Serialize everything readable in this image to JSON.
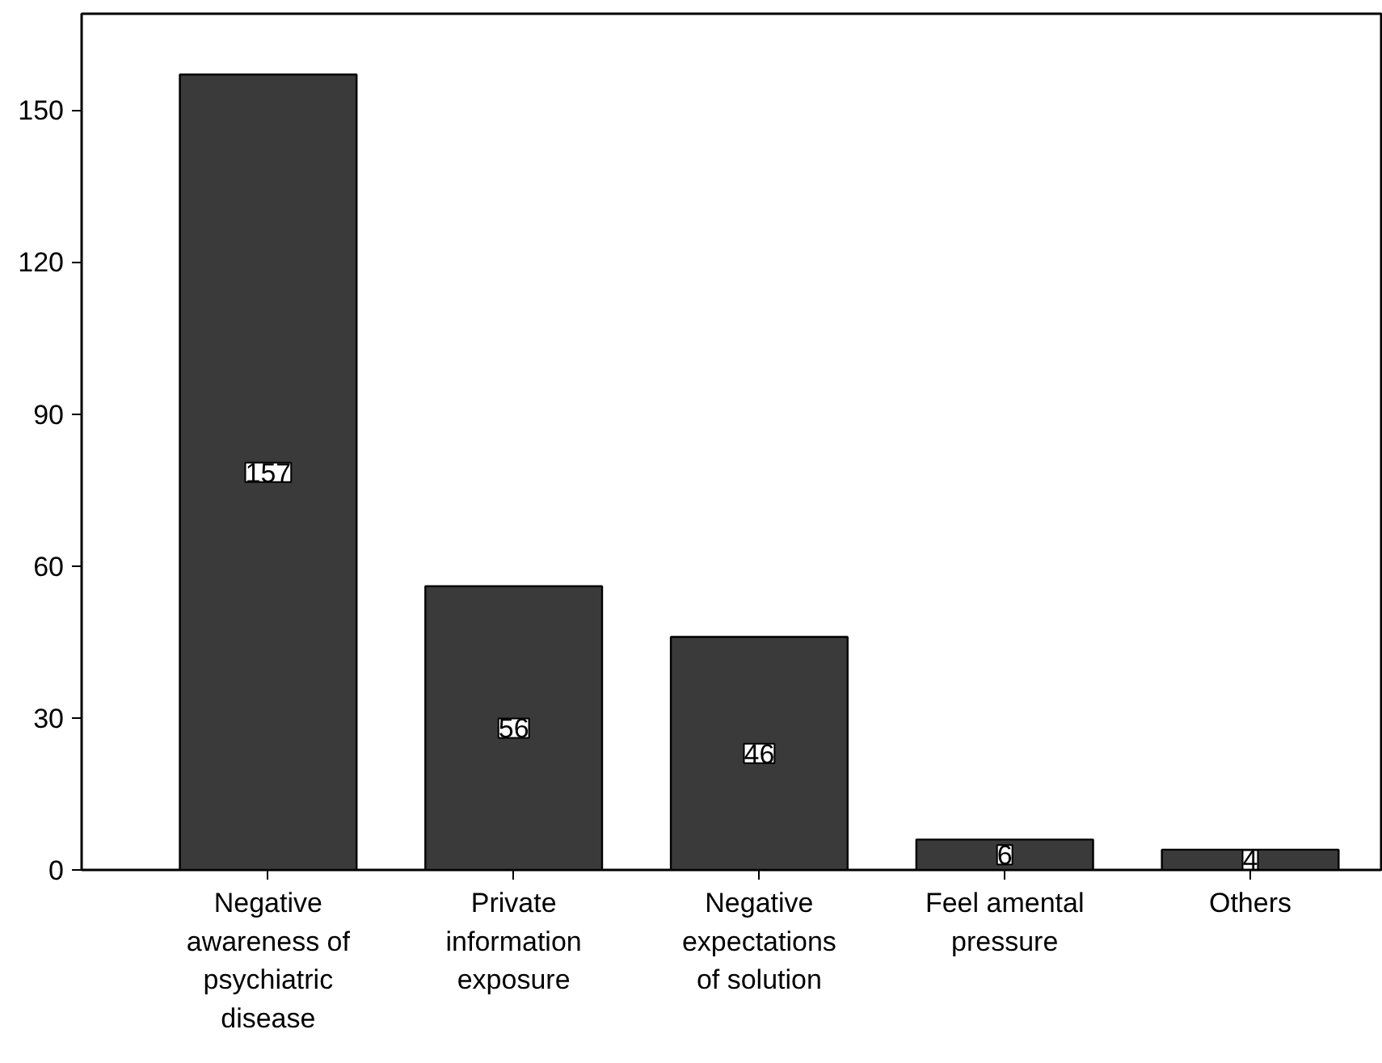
{
  "chart_data": {
    "type": "bar",
    "categories": [
      "Negative awareness of psychiatric disease",
      "Private information exposure",
      "Negative expectations of solution",
      "Feel amental pressure",
      "Others"
    ],
    "values": [
      157,
      56,
      46,
      6,
      4
    ],
    "color": "#3a3a3a",
    "ylim": [
      0,
      169
    ],
    "yticks": [
      0,
      30,
      60,
      90,
      120,
      150
    ],
    "data_labels": true,
    "grid": false
  }
}
